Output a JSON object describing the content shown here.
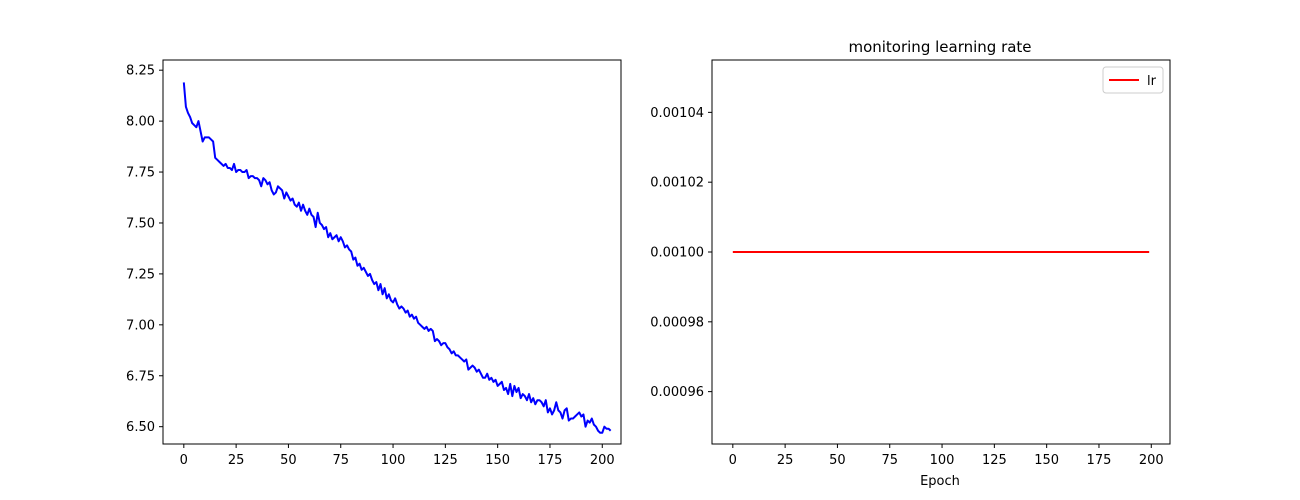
{
  "chart_data": [
    {
      "type": "line",
      "title": "",
      "xlabel": "",
      "ylabel": "",
      "xlim": [
        -9.95,
        208.95
      ],
      "ylim": [
        6.415,
        8.3
      ],
      "xticks": [
        0,
        25,
        50,
        75,
        100,
        125,
        150,
        175,
        200
      ],
      "yticks": [
        6.5,
        6.75,
        7.0,
        7.25,
        7.5,
        7.75,
        8.0,
        8.25
      ],
      "ytick_labels": [
        "6.50",
        "6.75",
        "7.00",
        "7.25",
        "7.50",
        "7.75",
        "8.00",
        "8.25"
      ],
      "grid": false,
      "legend": null,
      "series": [
        {
          "color": "#0000ff",
          "x_start": 0,
          "x_step": 1,
          "values": [
            8.19,
            8.07,
            8.04,
            8.02,
            7.99,
            7.98,
            7.97,
            8.0,
            7.95,
            7.9,
            7.92,
            7.92,
            7.92,
            7.91,
            7.9,
            7.82,
            7.81,
            7.8,
            7.79,
            7.78,
            7.79,
            7.77,
            7.77,
            7.76,
            7.79,
            7.75,
            7.76,
            7.76,
            7.75,
            7.75,
            7.76,
            7.72,
            7.73,
            7.73,
            7.72,
            7.72,
            7.71,
            7.68,
            7.72,
            7.71,
            7.69,
            7.7,
            7.66,
            7.64,
            7.65,
            7.68,
            7.67,
            7.66,
            7.62,
            7.65,
            7.63,
            7.61,
            7.62,
            7.59,
            7.58,
            7.6,
            7.56,
            7.59,
            7.56,
            7.54,
            7.57,
            7.54,
            7.53,
            7.48,
            7.55,
            7.5,
            7.49,
            7.47,
            7.48,
            7.43,
            7.45,
            7.42,
            7.43,
            7.44,
            7.41,
            7.43,
            7.41,
            7.38,
            7.39,
            7.37,
            7.36,
            7.32,
            7.33,
            7.29,
            7.3,
            7.27,
            7.28,
            7.26,
            7.24,
            7.25,
            7.22,
            7.2,
            7.21,
            7.17,
            7.2,
            7.15,
            7.18,
            7.13,
            7.15,
            7.12,
            7.11,
            7.13,
            7.1,
            7.08,
            7.09,
            7.08,
            7.06,
            7.07,
            7.04,
            7.05,
            7.03,
            7.04,
            7.01,
            7.0,
            6.99,
            6.98,
            6.99,
            6.97,
            6.98,
            6.97,
            6.92,
            6.93,
            6.92,
            6.9,
            6.91,
            6.91,
            6.89,
            6.88,
            6.86,
            6.87,
            6.85,
            6.85,
            6.84,
            6.83,
            6.82,
            6.83,
            6.78,
            6.79,
            6.8,
            6.79,
            6.77,
            6.78,
            6.76,
            6.74,
            6.74,
            6.76,
            6.73,
            6.74,
            6.72,
            6.73,
            6.7,
            6.71,
            6.72,
            6.68,
            6.69,
            6.66,
            6.71,
            6.65,
            6.7,
            6.67,
            6.69,
            6.64,
            6.66,
            6.65,
            6.63,
            6.66,
            6.62,
            6.64,
            6.61,
            6.63,
            6.63,
            6.62,
            6.6,
            6.63,
            6.57,
            6.59,
            6.56,
            6.58,
            6.62,
            6.58,
            6.57,
            6.54,
            6.58,
            6.59,
            6.53,
            6.54,
            6.54,
            6.55,
            6.56,
            6.57,
            6.55,
            6.56,
            6.5,
            6.53,
            6.52,
            6.54,
            6.51,
            6.5,
            6.48,
            6.47,
            6.47,
            6.5,
            6.49,
            6.49,
            6.48
          ]
        }
      ]
    },
    {
      "type": "line",
      "title": "monitoring learning rate",
      "xlabel": "Epoch",
      "ylabel": "",
      "xlim": [
        -9.95,
        208.95
      ],
      "ylim": [
        0.000945,
        0.001055
      ],
      "xticks": [
        0,
        25,
        50,
        75,
        100,
        125,
        150,
        175,
        200
      ],
      "yticks": [
        0.00096,
        0.00098,
        0.001,
        0.00102,
        0.00104
      ],
      "ytick_labels": [
        "0.00096",
        "0.00098",
        "0.00100",
        "0.00102",
        "0.00104"
      ],
      "grid": false,
      "legend": "top-right",
      "series": [
        {
          "name": "lr",
          "color": "#ff0000",
          "x": [
            0,
            199
          ],
          "values": [
            0.001,
            0.001
          ]
        }
      ]
    }
  ]
}
